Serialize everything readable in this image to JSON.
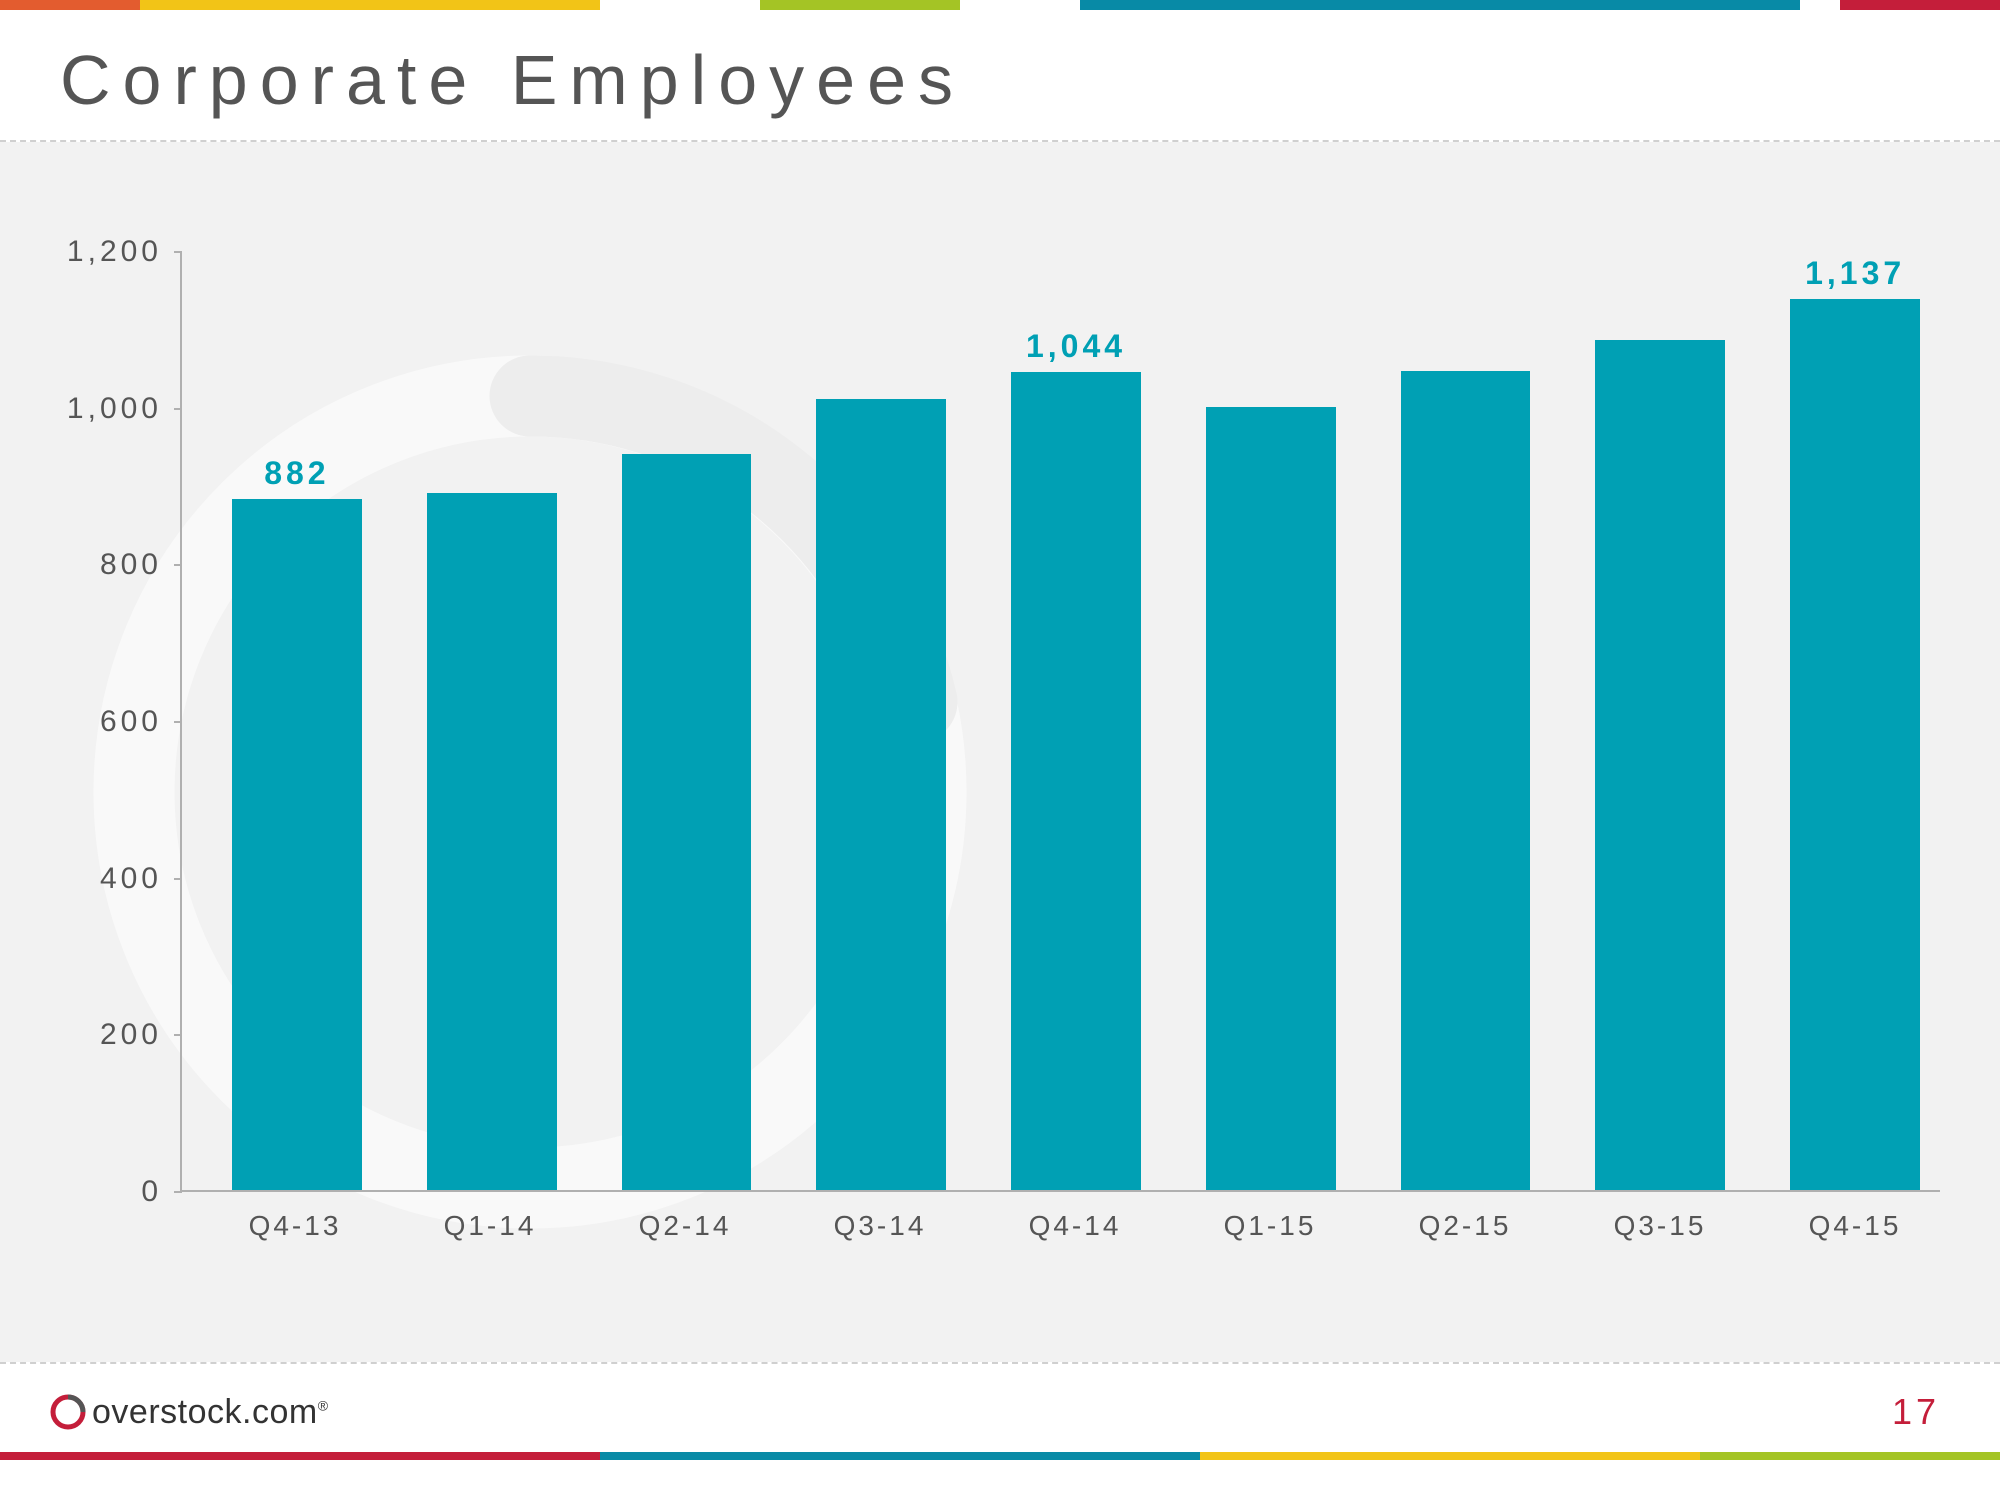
{
  "title": "Corporate Employees",
  "top_strip": {
    "segments": [
      {
        "color": "#e35c2f",
        "width_pct": 7
      },
      {
        "color": "#f2c417",
        "width_pct": 23
      },
      {
        "color": "#ffffff",
        "width_pct": 8
      },
      {
        "color": "#a4c425",
        "width_pct": 10
      },
      {
        "color": "#ffffff",
        "width_pct": 6
      },
      {
        "color": "#088aa6",
        "width_pct": 36
      },
      {
        "color": "#ffffff",
        "width_pct": 2
      },
      {
        "color": "#c41e3a",
        "width_pct": 8
      }
    ]
  },
  "chart": {
    "type": "bar",
    "background_color": "#f2f2f2",
    "bar_color": "#00a0b4",
    "value_label_color": "#00a0b4",
    "axis_color": "#b0b0b0",
    "label_color": "#555555",
    "y": {
      "min": 0,
      "max": 1200,
      "step": 200,
      "labels": [
        "0",
        "200",
        "400",
        "600",
        "800",
        "1,000",
        "1,200"
      ]
    },
    "bar_width": 0.65,
    "categories": [
      "Q4-13",
      "Q1-14",
      "Q2-14",
      "Q3-14",
      "Q4-14",
      "Q1-15",
      "Q2-15",
      "Q3-15",
      "Q4-15"
    ],
    "values": [
      882,
      890,
      940,
      1010,
      1044,
      1000,
      1045,
      1085,
      1137
    ],
    "show_value_label": [
      true,
      false,
      false,
      false,
      true,
      false,
      false,
      false,
      true
    ],
    "value_labels": [
      "882",
      "",
      "",
      "",
      "1,044",
      "",
      "",
      "",
      "1,137"
    ]
  },
  "footer": {
    "logo_text": "overstock.com",
    "logo_icon_color": "#c41e3a",
    "page_number": "17",
    "page_number_color": "#c41e3a"
  },
  "bottom_strip": {
    "segments": [
      {
        "color": "#c41e3a",
        "width_pct": 30
      },
      {
        "color": "#088aa6",
        "width_pct": 30
      },
      {
        "color": "#f2c417",
        "width_pct": 25
      },
      {
        "color": "#a4c425",
        "width_pct": 15
      }
    ]
  }
}
